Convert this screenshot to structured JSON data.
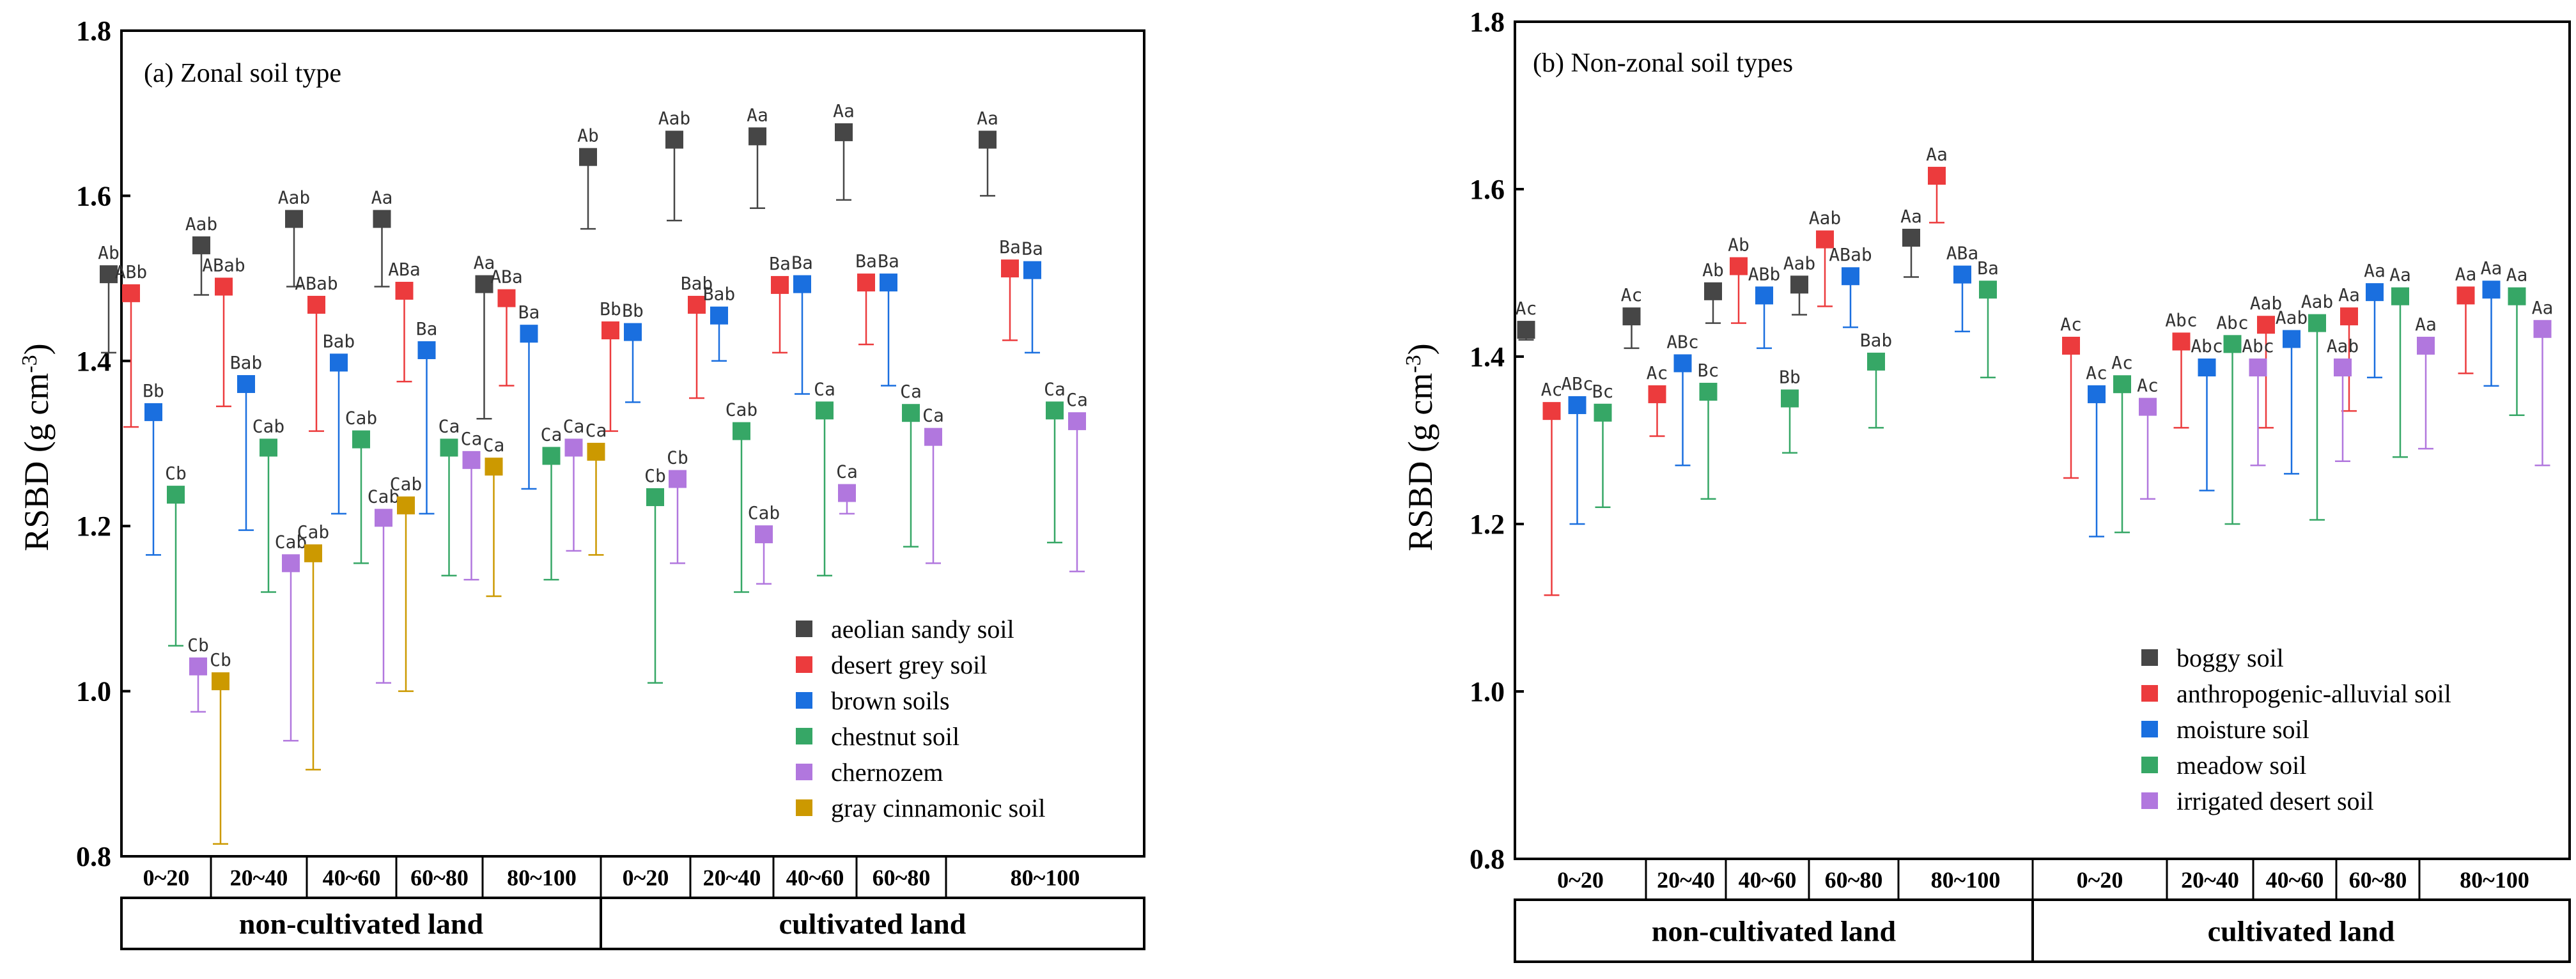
{
  "chart_data": [
    {
      "type": "scatter",
      "panel_label": "(a)  Zonal soil type",
      "ylabel": "RSBD (g cm",
      "ylabel_sup": "-3",
      "ylabel_close": ")",
      "ylim": [
        0.8,
        1.8
      ],
      "yticks": [
        "0.8",
        "1.0",
        "1.2",
        "1.4",
        "1.6",
        "1.8"
      ],
      "depth_labels": [
        "0~20",
        "20~40",
        "40~60",
        "60~80",
        "80~100",
        "0~20",
        "20~40",
        "40~60",
        "60~80",
        "80~100"
      ],
      "groups": [
        "non-cultivated land",
        "cultivated land"
      ],
      "error_direction": "down",
      "series": [
        {
          "name": "aeolian sandy soil",
          "color": "#464646",
          "values": [
            1.505,
            1.54,
            1.572,
            1.572,
            1.493,
            1.647,
            1.668,
            1.672,
            1.677,
            1.668
          ],
          "lower": [
            1.41,
            1.48,
            1.49,
            1.49,
            1.33,
            1.56,
            1.57,
            1.585,
            1.595,
            1.6
          ],
          "labels": [
            "Ab",
            "Aab",
            "Aab",
            "Aa",
            "Aa",
            "Ab",
            "Aab",
            "Aa",
            "Aa",
            "Aa"
          ]
        },
        {
          "name": "desert grey soil",
          "color": "#ec3b3d",
          "values": [
            1.482,
            1.49,
            1.468,
            1.485,
            1.476,
            1.437,
            1.468,
            1.492,
            1.495,
            1.512
          ],
          "lower": [
            1.32,
            1.345,
            1.315,
            1.375,
            1.37,
            1.315,
            1.355,
            1.41,
            1.42,
            1.425
          ],
          "labels": [
            "ABb",
            "ABab",
            "ABab",
            "ABa",
            "ABa",
            "Bb",
            "Bab",
            "Ba",
            "Ba",
            "Ba"
          ]
        },
        {
          "name": "brown soils",
          "color": "#1a6fdf",
          "values": [
            1.338,
            1.372,
            1.398,
            1.413,
            1.433,
            1.435,
            1.455,
            1.493,
            1.495,
            1.51
          ],
          "lower": [
            1.165,
            1.195,
            1.215,
            1.215,
            1.245,
            1.35,
            1.4,
            1.36,
            1.37,
            1.41
          ],
          "labels": [
            "Bb",
            "Bab",
            "Bab",
            "Ba",
            "Ba",
            "Bb",
            "Bab",
            "Ba",
            "Ba",
            "Ba"
          ]
        },
        {
          "name": "chestnut soil",
          "color": "#36a766",
          "values": [
            1.238,
            1.295,
            1.305,
            1.295,
            1.285,
            1.235,
            1.315,
            1.34,
            1.337,
            1.34
          ],
          "lower": [
            1.055,
            1.12,
            1.155,
            1.14,
            1.135,
            1.01,
            1.12,
            1.14,
            1.175,
            1.18
          ],
          "labels": [
            "Cb",
            "Cab",
            "Cab",
            "Ca",
            "Ca",
            "Cb",
            "Cab",
            "Ca",
            "Ca",
            "Ca"
          ]
        },
        {
          "name": "chernozem",
          "color": "#b177de",
          "values": [
            1.03,
            1.155,
            1.21,
            1.28,
            1.295,
            1.257,
            1.19,
            1.24,
            1.308,
            1.327
          ],
          "lower": [
            0.975,
            0.94,
            1.01,
            1.135,
            1.17,
            1.155,
            1.13,
            1.215,
            1.155,
            1.145
          ],
          "labels": [
            "Cb",
            "Cab",
            "Cab",
            "Ca",
            "Ca",
            "Cb",
            "Cab",
            "Ca",
            "Ca",
            "Ca"
          ]
        },
        {
          "name": "gray cinnamonic soil",
          "color": "#cc9900",
          "values": [
            1.012,
            1.167,
            1.225,
            1.272,
            1.29,
            null,
            null,
            null,
            null,
            null
          ],
          "lower": [
            0.815,
            0.905,
            1.0,
            1.115,
            1.165,
            null,
            null,
            null,
            null,
            null
          ],
          "labels": [
            "Cb",
            "Cab",
            "Cab",
            "Ca",
            "Ca",
            null,
            null,
            null,
            null,
            null
          ]
        }
      ]
    },
    {
      "type": "scatter",
      "panel_label": "(b) Non-zonal soil types",
      "ylabel": "RSBD (g cm",
      "ylabel_sup": "-3",
      "ylabel_close": ")",
      "ylim": [
        0.8,
        1.8
      ],
      "yticks": [
        "0.8",
        "1.0",
        "1.2",
        "1.4",
        "1.6",
        "1.8"
      ],
      "depth_labels": [
        "0~20",
        "20~40",
        "40~60",
        "60~80",
        "80~100",
        "0~20",
        "20~40",
        "40~60",
        "60~80",
        "80~100"
      ],
      "groups": [
        "non-cultivated land",
        "cultivated land"
      ],
      "error_direction": "down",
      "series": [
        {
          "name": "boggy soil",
          "color": "#464646",
          "values": [
            1.432,
            1.448,
            1.478,
            1.486,
            1.542,
            null,
            null,
            null,
            null,
            null
          ],
          "lower": [
            1.42,
            1.41,
            1.44,
            1.45,
            1.495,
            null,
            null,
            null,
            null,
            null
          ],
          "labels": [
            "Ac",
            "Ac",
            "Ab",
            "Aab",
            "Aa",
            null,
            null,
            null,
            null,
            null
          ]
        },
        {
          "name": "anthropogenic-alluvial soil",
          "color": "#ec3b3d",
          "values": [
            1.335,
            1.355,
            1.508,
            1.54,
            1.616,
            1.413,
            1.418,
            1.438,
            1.448,
            1.473
          ],
          "lower": [
            1.115,
            1.305,
            1.44,
            1.46,
            1.56,
            1.255,
            1.315,
            1.315,
            1.335,
            1.38
          ],
          "labels": [
            "Ac",
            "Ac",
            "Ab",
            "Aab",
            "Aa",
            "Ac",
            "Abc",
            "Aab",
            "Aa",
            "Aa"
          ]
        },
        {
          "name": "moisture soil",
          "color": "#1a6fdf",
          "values": [
            1.342,
            1.392,
            1.473,
            1.496,
            1.498,
            1.355,
            1.387,
            1.421,
            1.477,
            1.48
          ],
          "lower": [
            1.2,
            1.27,
            1.41,
            1.435,
            1.43,
            1.185,
            1.24,
            1.26,
            1.375,
            1.365
          ],
          "labels": [
            "ABc",
            "ABc",
            "ABb",
            "ABab",
            "ABa",
            "Ac",
            "Abc",
            "Aab",
            "Aa",
            "Aa"
          ]
        },
        {
          "name": "meadow soil",
          "color": "#36a766",
          "values": [
            1.333,
            1.358,
            1.35,
            1.394,
            1.48,
            1.367,
            1.415,
            1.44,
            1.472,
            1.472
          ],
          "lower": [
            1.22,
            1.23,
            1.285,
            1.315,
            1.375,
            1.19,
            1.2,
            1.205,
            1.28,
            1.33
          ],
          "labels": [
            "Bc",
            "Bc",
            "Bb",
            "Bab",
            "Ba",
            "Ac",
            "Abc",
            "Aab",
            "Aa",
            "Aa"
          ]
        },
        {
          "name": "irrigated desert soil",
          "color": "#b177de",
          "values": [
            null,
            null,
            null,
            null,
            null,
            1.34,
            1.387,
            1.387,
            1.413,
            1.433
          ],
          "lower": [
            null,
            null,
            null,
            null,
            null,
            1.23,
            1.27,
            1.275,
            1.29,
            1.27
          ],
          "labels": [
            null,
            null,
            null,
            null,
            null,
            "Ac",
            "Abc",
            "Aab",
            "Aa",
            "Aa"
          ]
        }
      ]
    }
  ]
}
